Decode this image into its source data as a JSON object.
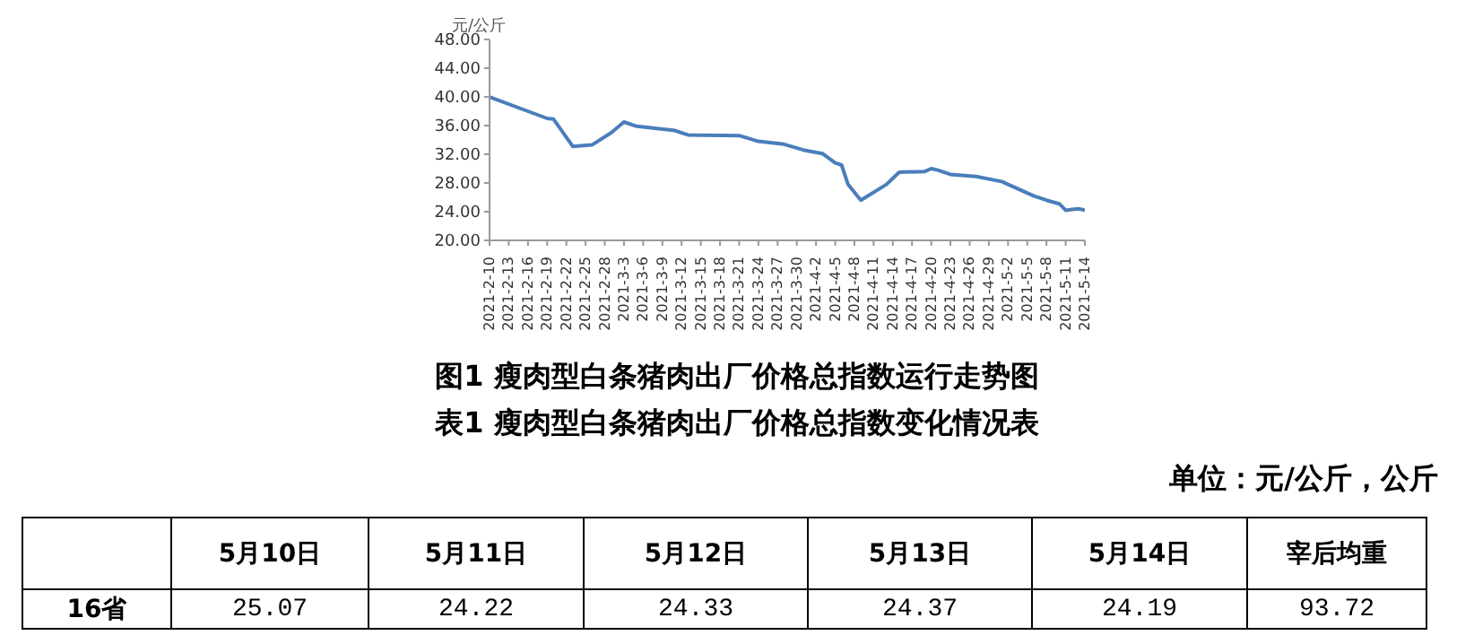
{
  "chart_data": [
    {
      "type": "line",
      "title": "图1 瘦肉型白条猪肉出厂价格总指数运行走势图",
      "ylabel": "元/公斤",
      "x": [
        "2021-02-10",
        "2021-02-19",
        "2021-02-20",
        "2021-02-23",
        "2021-02-26",
        "2021-03-01",
        "2021-03-03",
        "2021-03-05",
        "2021-03-11",
        "2021-03-13",
        "2021-03-21",
        "2021-03-24",
        "2021-03-28",
        "2021-03-31",
        "2021-04-03",
        "2021-04-05",
        "2021-04-06",
        "2021-04-07",
        "2021-04-09",
        "2021-04-13",
        "2021-04-15",
        "2021-04-19",
        "2021-04-20",
        "2021-04-21",
        "2021-04-23",
        "2021-04-27",
        "2021-05-01",
        "2021-05-06",
        "2021-05-08",
        "2021-05-10",
        "2021-05-11",
        "2021-05-12",
        "2021-05-13",
        "2021-05-14"
      ],
      "series": [
        {
          "color": "#4a7ebb",
          "values": [
            40.0,
            37.0,
            36.9,
            33.1,
            33.3,
            35.0,
            36.5,
            35.9,
            35.3,
            34.7,
            34.6,
            33.8,
            33.4,
            32.6,
            32.1,
            30.8,
            30.5,
            27.8,
            25.6,
            27.8,
            29.5,
            29.6,
            30.0,
            29.8,
            29.2,
            28.9,
            28.2,
            26.2,
            25.6,
            25.1,
            24.2,
            24.3,
            24.4,
            24.2
          ]
        }
      ],
      "xlim": [
        "2021-02-10",
        "2021-05-14"
      ],
      "xticks": [
        {
          "value": "2021-02-10",
          "label": "2021-2-10"
        },
        {
          "value": "2021-02-13",
          "label": "2021-2-13"
        },
        {
          "value": "2021-02-16",
          "label": "2021-2-16"
        },
        {
          "value": "2021-02-19",
          "label": "2021-2-19"
        },
        {
          "value": "2021-02-22",
          "label": "2021-2-22"
        },
        {
          "value": "2021-02-25",
          "label": "2021-2-25"
        },
        {
          "value": "2021-02-28",
          "label": "2021-2-28"
        },
        {
          "value": "2021-03-03",
          "label": "2021-3-3"
        },
        {
          "value": "2021-03-06",
          "label": "2021-3-6"
        },
        {
          "value": "2021-03-09",
          "label": "2021-3-9"
        },
        {
          "value": "2021-03-12",
          "label": "2021-3-12"
        },
        {
          "value": "2021-03-15",
          "label": "2021-3-15"
        },
        {
          "value": "2021-03-18",
          "label": "2021-3-18"
        },
        {
          "value": "2021-03-21",
          "label": "2021-3-21"
        },
        {
          "value": "2021-03-24",
          "label": "2021-3-24"
        },
        {
          "value": "2021-03-27",
          "label": "2021-3-27"
        },
        {
          "value": "2021-03-30",
          "label": "2021-3-30"
        },
        {
          "value": "2021-04-02",
          "label": "2021-4-2"
        },
        {
          "value": "2021-04-05",
          "label": "2021-4-5"
        },
        {
          "value": "2021-04-08",
          "label": "2021-4-8"
        },
        {
          "value": "2021-04-11",
          "label": "2021-4-11"
        },
        {
          "value": "2021-04-14",
          "label": "2021-4-14"
        },
        {
          "value": "2021-04-17",
          "label": "2021-4-17"
        },
        {
          "value": "2021-04-20",
          "label": "2021-4-20"
        },
        {
          "value": "2021-04-23",
          "label": "2021-4-23"
        },
        {
          "value": "2021-04-26",
          "label": "2021-4-26"
        },
        {
          "value": "2021-04-29",
          "label": "2021-4-29"
        },
        {
          "value": "2021-05-02",
          "label": "2021-5-2"
        },
        {
          "value": "2021-05-05",
          "label": "2021-5-5"
        },
        {
          "value": "2021-05-08",
          "label": "2021-5-8"
        },
        {
          "value": "2021-05-11",
          "label": "2021-5-11"
        },
        {
          "value": "2021-05-14",
          "label": "2021-5-14"
        }
      ],
      "ylim": [
        20,
        48
      ],
      "yticks": [
        {
          "value": 20,
          "label": "20.00"
        },
        {
          "value": 24,
          "label": "24.00"
        },
        {
          "value": 28,
          "label": "28.00"
        },
        {
          "value": 32,
          "label": "32.00"
        },
        {
          "value": 36,
          "label": "36.00"
        },
        {
          "value": 40,
          "label": "40.00"
        },
        {
          "value": 44,
          "label": "44.00"
        },
        {
          "value": 48,
          "label": "48.00"
        }
      ],
      "marker": "none",
      "line_style": "solid"
    },
    {
      "type": "other",
      "title": "表1 瘦肉型白条猪肉出厂价格总指数变化情况表",
      "annotations": [
        "单位：元/公斤，公斤"
      ],
      "categories": [
        "5月10日",
        "5月11日",
        "5月12日",
        "5月13日",
        "5月14日",
        "宰后均重"
      ],
      "series": [
        {
          "name": "16省",
          "values": [
            25.07,
            24.22,
            24.33,
            24.37,
            24.19,
            93.72
          ]
        }
      ],
      "data_labels": true
    }
  ]
}
